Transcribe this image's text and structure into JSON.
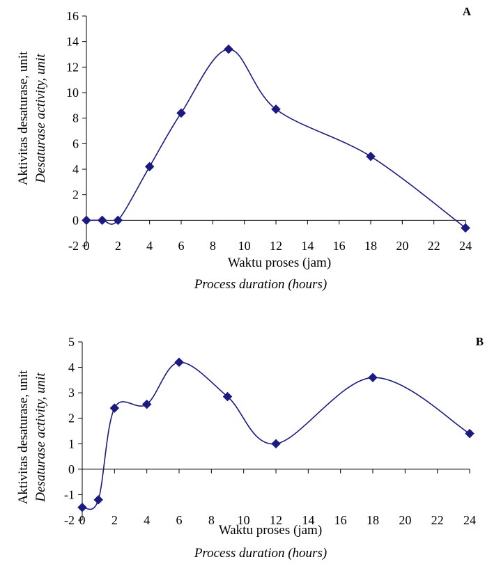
{
  "colors": {
    "series": "#1a1a80",
    "axis": "#000000"
  },
  "chart_data": [
    {
      "type": "line",
      "panel_label": "A",
      "xlabel": "Waktu proses (jam)",
      "xlabel_en": "Process duration (hours)",
      "ylabel": "Aktivitas desaturase, unit",
      "ylabel_en": "Desaturase activity, unit",
      "xlim": [
        0,
        24
      ],
      "ylim": [
        -2,
        16
      ],
      "x_ticks": [
        "0",
        "2",
        "4",
        "6",
        "8",
        "10",
        "12",
        "14",
        "16",
        "18",
        "20",
        "22",
        "24"
      ],
      "y_ticks": [
        "-2",
        "0",
        "2",
        "4",
        "6",
        "8",
        "10",
        "12",
        "14",
        "16"
      ],
      "marker": "diamond",
      "smooth": true,
      "grid": false,
      "series": [
        {
          "x": [
            0,
            1,
            2,
            4,
            6,
            9,
            12,
            18,
            24
          ],
          "values": [
            0,
            0,
            0,
            4.2,
            8.4,
            13.4,
            8.7,
            5.0,
            -0.6
          ]
        }
      ]
    },
    {
      "type": "line",
      "panel_label": "B",
      "xlabel": "Waktu proses (jam)",
      "xlabel_en": "Process duration (hours)",
      "ylabel": "Aktivitas desaturase, unit",
      "ylabel_en": "Desaturase activity, unit",
      "xlim": [
        0,
        24
      ],
      "ylim": [
        -2,
        5
      ],
      "x_ticks": [
        "0",
        "2",
        "4",
        "6",
        "8",
        "10",
        "12",
        "14",
        "16",
        "18",
        "20",
        "22",
        "24"
      ],
      "y_ticks": [
        "-2",
        "-1",
        "0",
        "1",
        "2",
        "3",
        "4",
        "5"
      ],
      "marker": "diamond",
      "smooth": true,
      "grid": false,
      "series": [
        {
          "x": [
            0,
            1,
            2,
            4,
            6,
            9,
            12,
            18,
            24
          ],
          "values": [
            -1.5,
            -1.2,
            2.4,
            2.55,
            4.2,
            2.85,
            1.0,
            3.6,
            1.4
          ]
        }
      ]
    }
  ]
}
